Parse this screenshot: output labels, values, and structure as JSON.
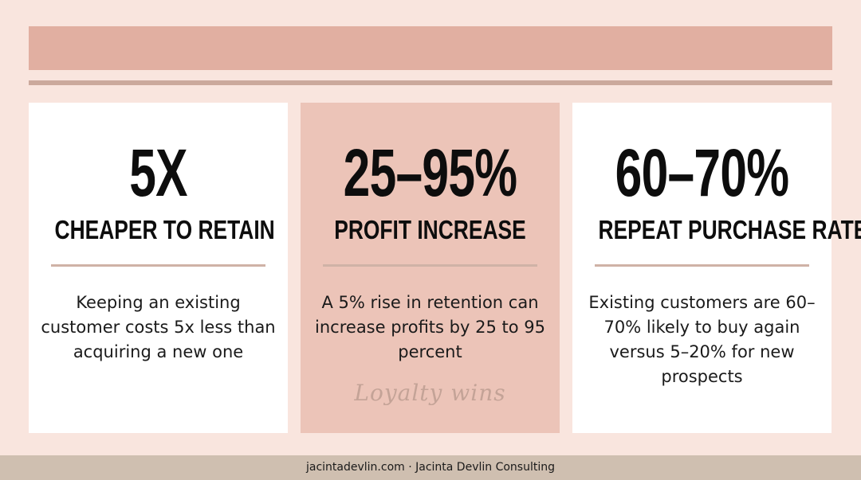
{
  "cards": [
    {
      "value": "5X",
      "label": "CHEAPER TO RETAIN",
      "description": "Keeping an existing customer costs 5x less than acquiring a new one"
    },
    {
      "value": "25–95%",
      "label": "PROFIT INCREASE",
      "description": "A 5% rise in retention can increase profits by 25 to 95 percent",
      "tagline": "Loyalty wins"
    },
    {
      "value": "60–70%",
      "label": "REPEAT PURCHASE RATE",
      "description": "Existing customers are 60–70% likely to buy again versus 5–20% for new prospects"
    }
  ],
  "footer": {
    "text": "jacintadevlin.com · Jacinta Devlin Consulting"
  },
  "colors": {
    "background": "#f9e5de",
    "banner": "#e1afa1",
    "highlight_card": "#ecc4b8",
    "footer": "#cfbfb0"
  }
}
